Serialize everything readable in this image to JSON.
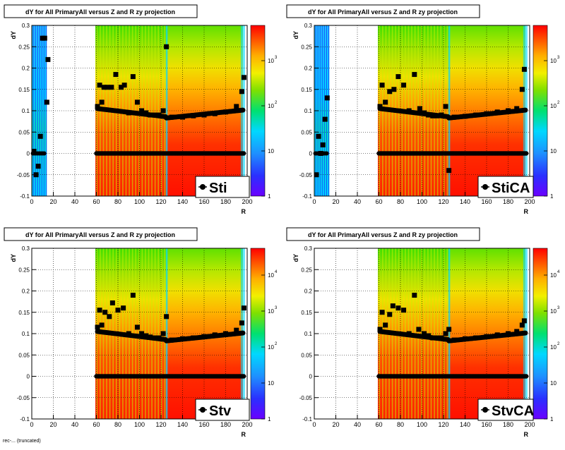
{
  "bottom_note": "rec-... (truncated)",
  "chart_data": [
    {
      "type": "heatmap",
      "title": "dY for All PrimaryAll versus Z and R zy projection",
      "xlabel": "R",
      "ylabel": "dY",
      "xlim": [
        0,
        200
      ],
      "ylim": [
        -0.1,
        0.3
      ],
      "xticks": [
        "0",
        "20",
        "40",
        "60",
        "80",
        "100",
        "120",
        "140",
        "160",
        "180",
        "200"
      ],
      "yticks": [
        "-0.1",
        "-0.05",
        "0",
        "0.05",
        "0.1",
        "0.15",
        "0.2",
        "0.25",
        "0.3"
      ],
      "colorbar_ticks": [
        "1",
        "10",
        "10",
        "10"
      ],
      "colorbar_exps": [
        "",
        "",
        "2",
        "3"
      ],
      "legend": "Sti",
      "grid": true,
      "profile": [
        {
          "x": 2,
          "y": 0.005
        },
        {
          "x": 4,
          "y": -0.05
        },
        {
          "x": 6,
          "y": -0.03
        },
        {
          "x": 8,
          "y": 0.04
        },
        {
          "x": 10,
          "y": 0.27
        },
        {
          "x": 12,
          "y": 0.27
        },
        {
          "x": 14,
          "y": 0.12
        },
        {
          "x": 15,
          "y": 0.22
        },
        {
          "x": 61,
          "y": 0.11
        },
        {
          "x": 63,
          "y": 0.16
        },
        {
          "x": 65,
          "y": 0.12
        },
        {
          "x": 67,
          "y": 0.155
        },
        {
          "x": 70,
          "y": 0.155
        },
        {
          "x": 74,
          "y": 0.155
        },
        {
          "x": 78,
          "y": 0.185
        },
        {
          "x": 83,
          "y": 0.155
        },
        {
          "x": 86,
          "y": 0.16
        },
        {
          "x": 90,
          "y": 0.095
        },
        {
          "x": 94,
          "y": 0.18
        },
        {
          "x": 98,
          "y": 0.12
        },
        {
          "x": 102,
          "y": 0.1
        },
        {
          "x": 106,
          "y": 0.095
        },
        {
          "x": 110,
          "y": 0.09
        },
        {
          "x": 114,
          "y": 0.09
        },
        {
          "x": 118,
          "y": 0.09
        },
        {
          "x": 122,
          "y": 0.1
        },
        {
          "x": 125,
          "y": 0.25
        },
        {
          "x": 130,
          "y": 0.085
        },
        {
          "x": 140,
          "y": 0.085
        },
        {
          "x": 150,
          "y": 0.088
        },
        {
          "x": 160,
          "y": 0.09
        },
        {
          "x": 170,
          "y": 0.093
        },
        {
          "x": 180,
          "y": 0.097
        },
        {
          "x": 190,
          "y": 0.11
        },
        {
          "x": 195,
          "y": 0.145
        },
        {
          "x": 197,
          "y": 0.178
        }
      ]
    },
    {
      "type": "heatmap",
      "title": "dY for All PrimaryAll versus Z and R zy projection",
      "xlabel": "R",
      "ylabel": "dY",
      "xlim": [
        0,
        200
      ],
      "ylim": [
        -0.1,
        0.3
      ],
      "xticks": [
        "0",
        "20",
        "40",
        "60",
        "80",
        "100",
        "120",
        "140",
        "160",
        "180",
        "200"
      ],
      "yticks": [
        "-0.1",
        "-0.05",
        "0",
        "0.05",
        "0.1",
        "0.15",
        "0.2",
        "0.25",
        "0.3"
      ],
      "colorbar_ticks": [
        "1",
        "10",
        "10",
        "10"
      ],
      "colorbar_exps": [
        "",
        "",
        "2",
        "3"
      ],
      "legend": "StiCA",
      "grid": true,
      "profile": [
        {
          "x": 2,
          "y": -0.05
        },
        {
          "x": 4,
          "y": 0.04
        },
        {
          "x": 6,
          "y": 0.0
        },
        {
          "x": 8,
          "y": 0.02
        },
        {
          "x": 10,
          "y": 0.08
        },
        {
          "x": 12,
          "y": 0.13
        },
        {
          "x": 61,
          "y": 0.11
        },
        {
          "x": 63,
          "y": 0.16
        },
        {
          "x": 66,
          "y": 0.12
        },
        {
          "x": 70,
          "y": 0.145
        },
        {
          "x": 74,
          "y": 0.15
        },
        {
          "x": 78,
          "y": 0.18
        },
        {
          "x": 83,
          "y": 0.16
        },
        {
          "x": 88,
          "y": 0.1
        },
        {
          "x": 93,
          "y": 0.185
        },
        {
          "x": 98,
          "y": 0.105
        },
        {
          "x": 102,
          "y": 0.095
        },
        {
          "x": 106,
          "y": 0.09
        },
        {
          "x": 110,
          "y": 0.088
        },
        {
          "x": 114,
          "y": 0.088
        },
        {
          "x": 118,
          "y": 0.09
        },
        {
          "x": 122,
          "y": 0.11
        },
        {
          "x": 125,
          "y": -0.04
        },
        {
          "x": 130,
          "y": 0.085
        },
        {
          "x": 140,
          "y": 0.087
        },
        {
          "x": 150,
          "y": 0.09
        },
        {
          "x": 160,
          "y": 0.093
        },
        {
          "x": 170,
          "y": 0.097
        },
        {
          "x": 180,
          "y": 0.1
        },
        {
          "x": 188,
          "y": 0.105
        },
        {
          "x": 193,
          "y": 0.15
        },
        {
          "x": 195,
          "y": 0.197
        }
      ]
    },
    {
      "type": "heatmap",
      "title": "dY for All PrimaryAll versus Z and R zy projection",
      "xlabel": "R",
      "ylabel": "dY",
      "xlim": [
        0,
        200
      ],
      "ylim": [
        -0.1,
        0.3
      ],
      "xticks": [
        "0",
        "20",
        "40",
        "60",
        "80",
        "100",
        "120",
        "140",
        "160",
        "180",
        "200"
      ],
      "yticks": [
        "-0.1",
        "-0.05",
        "0",
        "0.05",
        "0.1",
        "0.15",
        "0.2",
        "0.25",
        "0.3"
      ],
      "colorbar_ticks": [
        "1",
        "10",
        "10",
        "10",
        "10"
      ],
      "colorbar_exps": [
        "",
        "",
        "2",
        "3",
        "4"
      ],
      "legend": "Stv",
      "grid": true,
      "profile": [
        {
          "x": 61,
          "y": 0.115
        },
        {
          "x": 63,
          "y": 0.155
        },
        {
          "x": 65,
          "y": 0.12
        },
        {
          "x": 68,
          "y": 0.15
        },
        {
          "x": 72,
          "y": 0.14
        },
        {
          "x": 75,
          "y": 0.172
        },
        {
          "x": 80,
          "y": 0.155
        },
        {
          "x": 85,
          "y": 0.16
        },
        {
          "x": 90,
          "y": 0.1
        },
        {
          "x": 94,
          "y": 0.19
        },
        {
          "x": 98,
          "y": 0.115
        },
        {
          "x": 102,
          "y": 0.1
        },
        {
          "x": 106,
          "y": 0.095
        },
        {
          "x": 110,
          "y": 0.092
        },
        {
          "x": 114,
          "y": 0.09
        },
        {
          "x": 118,
          "y": 0.09
        },
        {
          "x": 122,
          "y": 0.1
        },
        {
          "x": 125,
          "y": 0.14
        },
        {
          "x": 130,
          "y": 0.085
        },
        {
          "x": 140,
          "y": 0.088
        },
        {
          "x": 150,
          "y": 0.09
        },
        {
          "x": 160,
          "y": 0.093
        },
        {
          "x": 170,
          "y": 0.097
        },
        {
          "x": 180,
          "y": 0.1
        },
        {
          "x": 190,
          "y": 0.108
        },
        {
          "x": 195,
          "y": 0.125
        },
        {
          "x": 197,
          "y": 0.16
        }
      ]
    },
    {
      "type": "heatmap",
      "title": "dY for All PrimaryAll versus Z and R zy projection",
      "xlabel": "R",
      "ylabel": "dY",
      "xlim": [
        0,
        200
      ],
      "ylim": [
        -0.1,
        0.3
      ],
      "xticks": [
        "0",
        "20",
        "40",
        "60",
        "80",
        "100",
        "120",
        "140",
        "160",
        "180",
        "200"
      ],
      "yticks": [
        "-0.1",
        "-0.05",
        "0",
        "0.05",
        "0.1",
        "0.15",
        "0.2",
        "0.25",
        "0.3"
      ],
      "colorbar_ticks": [
        "1",
        "10",
        "10",
        "10",
        "10"
      ],
      "colorbar_exps": [
        "",
        "",
        "2",
        "3",
        "4"
      ],
      "legend": "StvCA",
      "grid": true,
      "profile": [
        {
          "x": 61,
          "y": 0.11
        },
        {
          "x": 63,
          "y": 0.15
        },
        {
          "x": 66,
          "y": 0.12
        },
        {
          "x": 70,
          "y": 0.145
        },
        {
          "x": 73,
          "y": 0.165
        },
        {
          "x": 78,
          "y": 0.16
        },
        {
          "x": 83,
          "y": 0.155
        },
        {
          "x": 88,
          "y": 0.1
        },
        {
          "x": 93,
          "y": 0.19
        },
        {
          "x": 97,
          "y": 0.11
        },
        {
          "x": 102,
          "y": 0.1
        },
        {
          "x": 106,
          "y": 0.095
        },
        {
          "x": 110,
          "y": 0.09
        },
        {
          "x": 114,
          "y": 0.09
        },
        {
          "x": 118,
          "y": 0.09
        },
        {
          "x": 122,
          "y": 0.1
        },
        {
          "x": 125,
          "y": 0.11
        },
        {
          "x": 130,
          "y": 0.085
        },
        {
          "x": 140,
          "y": 0.088
        },
        {
          "x": 150,
          "y": 0.09
        },
        {
          "x": 160,
          "y": 0.093
        },
        {
          "x": 170,
          "y": 0.097
        },
        {
          "x": 180,
          "y": 0.1
        },
        {
          "x": 188,
          "y": 0.105
        },
        {
          "x": 193,
          "y": 0.12
        },
        {
          "x": 195,
          "y": 0.13
        }
      ]
    }
  ]
}
